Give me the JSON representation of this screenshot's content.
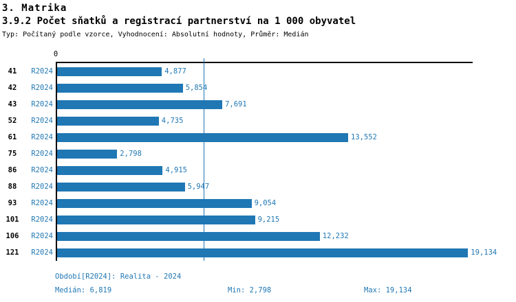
{
  "header": {
    "section_title": "3. Matrika",
    "chart_title": "3.9.2 Počet sňatků a registrací partnerství na 1 000 obyvatel",
    "type_line": "Typ: Počítaný podle vzorce, Vyhodnocení: Absolutní hodnoty, Průměr: Medián"
  },
  "chart_data": {
    "type": "bar",
    "orientation": "horizontal",
    "title": "3.9.2 Počet sňatků a registrací partnerství na 1 000 obyvatel",
    "categories": [
      "41",
      "42",
      "43",
      "52",
      "61",
      "75",
      "86",
      "88",
      "93",
      "101",
      "106",
      "121"
    ],
    "series": [
      {
        "name": "R2024",
        "values": [
          4.877,
          5.854,
          7.691,
          4.735,
          13.552,
          2.798,
          4.915,
          5.947,
          9.054,
          9.215,
          12.232,
          19.134
        ]
      }
    ],
    "value_labels": [
      "4,877",
      "5,854",
      "7,691",
      "4,735",
      "13,552",
      "2,798",
      "4,915",
      "5,947",
      "9,054",
      "9,215",
      "12,232",
      "19,134"
    ],
    "xlabel": "",
    "ylabel": "",
    "xlim": [
      0,
      19.35
    ],
    "zero_tick_label": "0",
    "median_line_value": 6.819,
    "grid": false,
    "legend_position": "none",
    "stats": {
      "median": 6.819,
      "min": 2.798,
      "max": 19.134
    }
  },
  "footer": {
    "period_label": "Období[R2024]: Realita - 2024",
    "median_label": "Medián: 6,819",
    "min_label": "Min: 2,798",
    "max_label": "Max: 19,134"
  },
  "colors": {
    "bar": "#1f77b4",
    "accent_text": "#1f77b4",
    "median_line": "#1f77b4",
    "axis": "#000000",
    "title_text": "#000000",
    "background": "#ffffff"
  }
}
